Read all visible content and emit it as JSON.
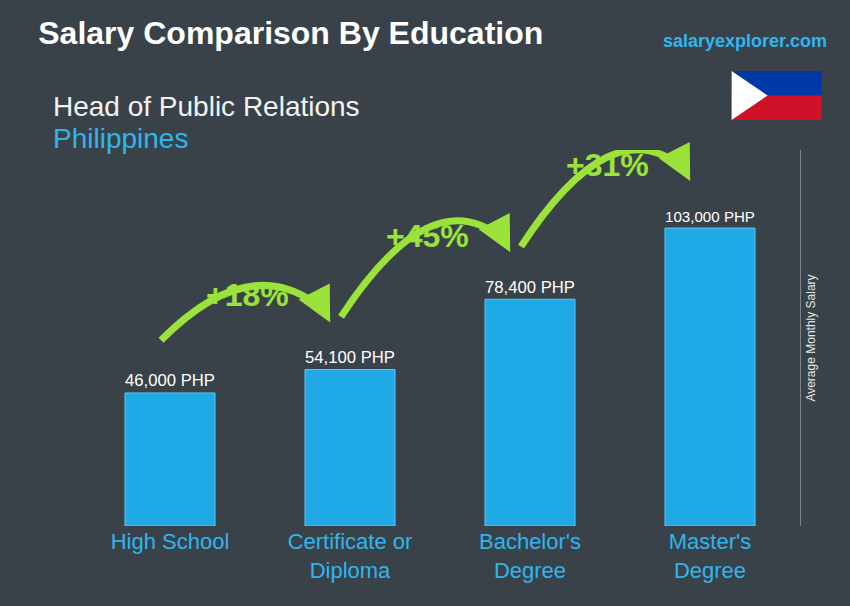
{
  "chart_data": {
    "type": "bar",
    "title": "Salary Comparison By Education",
    "subtitle": "Head of Public Relations",
    "country": "Philippines",
    "source": "salaryexplorer.com",
    "y_label": "Average Monthly Salary",
    "categories": [
      "High School",
      "Certificate or Diploma",
      "Bachelor's Degree",
      "Master's Degree"
    ],
    "values": [
      46000,
      54100,
      78400,
      103000
    ],
    "value_labels": [
      "46,000 PHP",
      "54,100 PHP",
      "78,400 PHP",
      "103,000 PHP"
    ],
    "data_labels": true,
    "annotations": [
      "+18%",
      "+45%",
      "+31%"
    ],
    "color": "#1fa9e6",
    "ylim": [
      0,
      130000
    ],
    "tick_labels": "x",
    "grid": false
  }
}
